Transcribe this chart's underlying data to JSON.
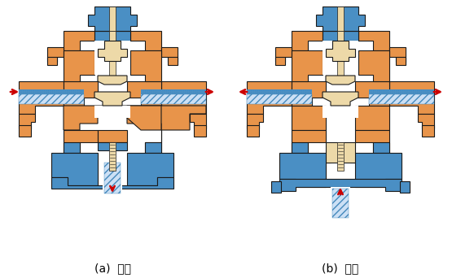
{
  "bg_color": "#ffffff",
  "orange": "#E8944A",
  "blue": "#4A8FC4",
  "tan": "#D4B483",
  "light_tan": "#EDD9A8",
  "red": "#CC0000",
  "dark": "#1A1A1A",
  "label_a": "(a)  分流",
  "label_b": "(b)  合流",
  "fig_width": 5.82,
  "fig_height": 3.42,
  "dpi": 100
}
